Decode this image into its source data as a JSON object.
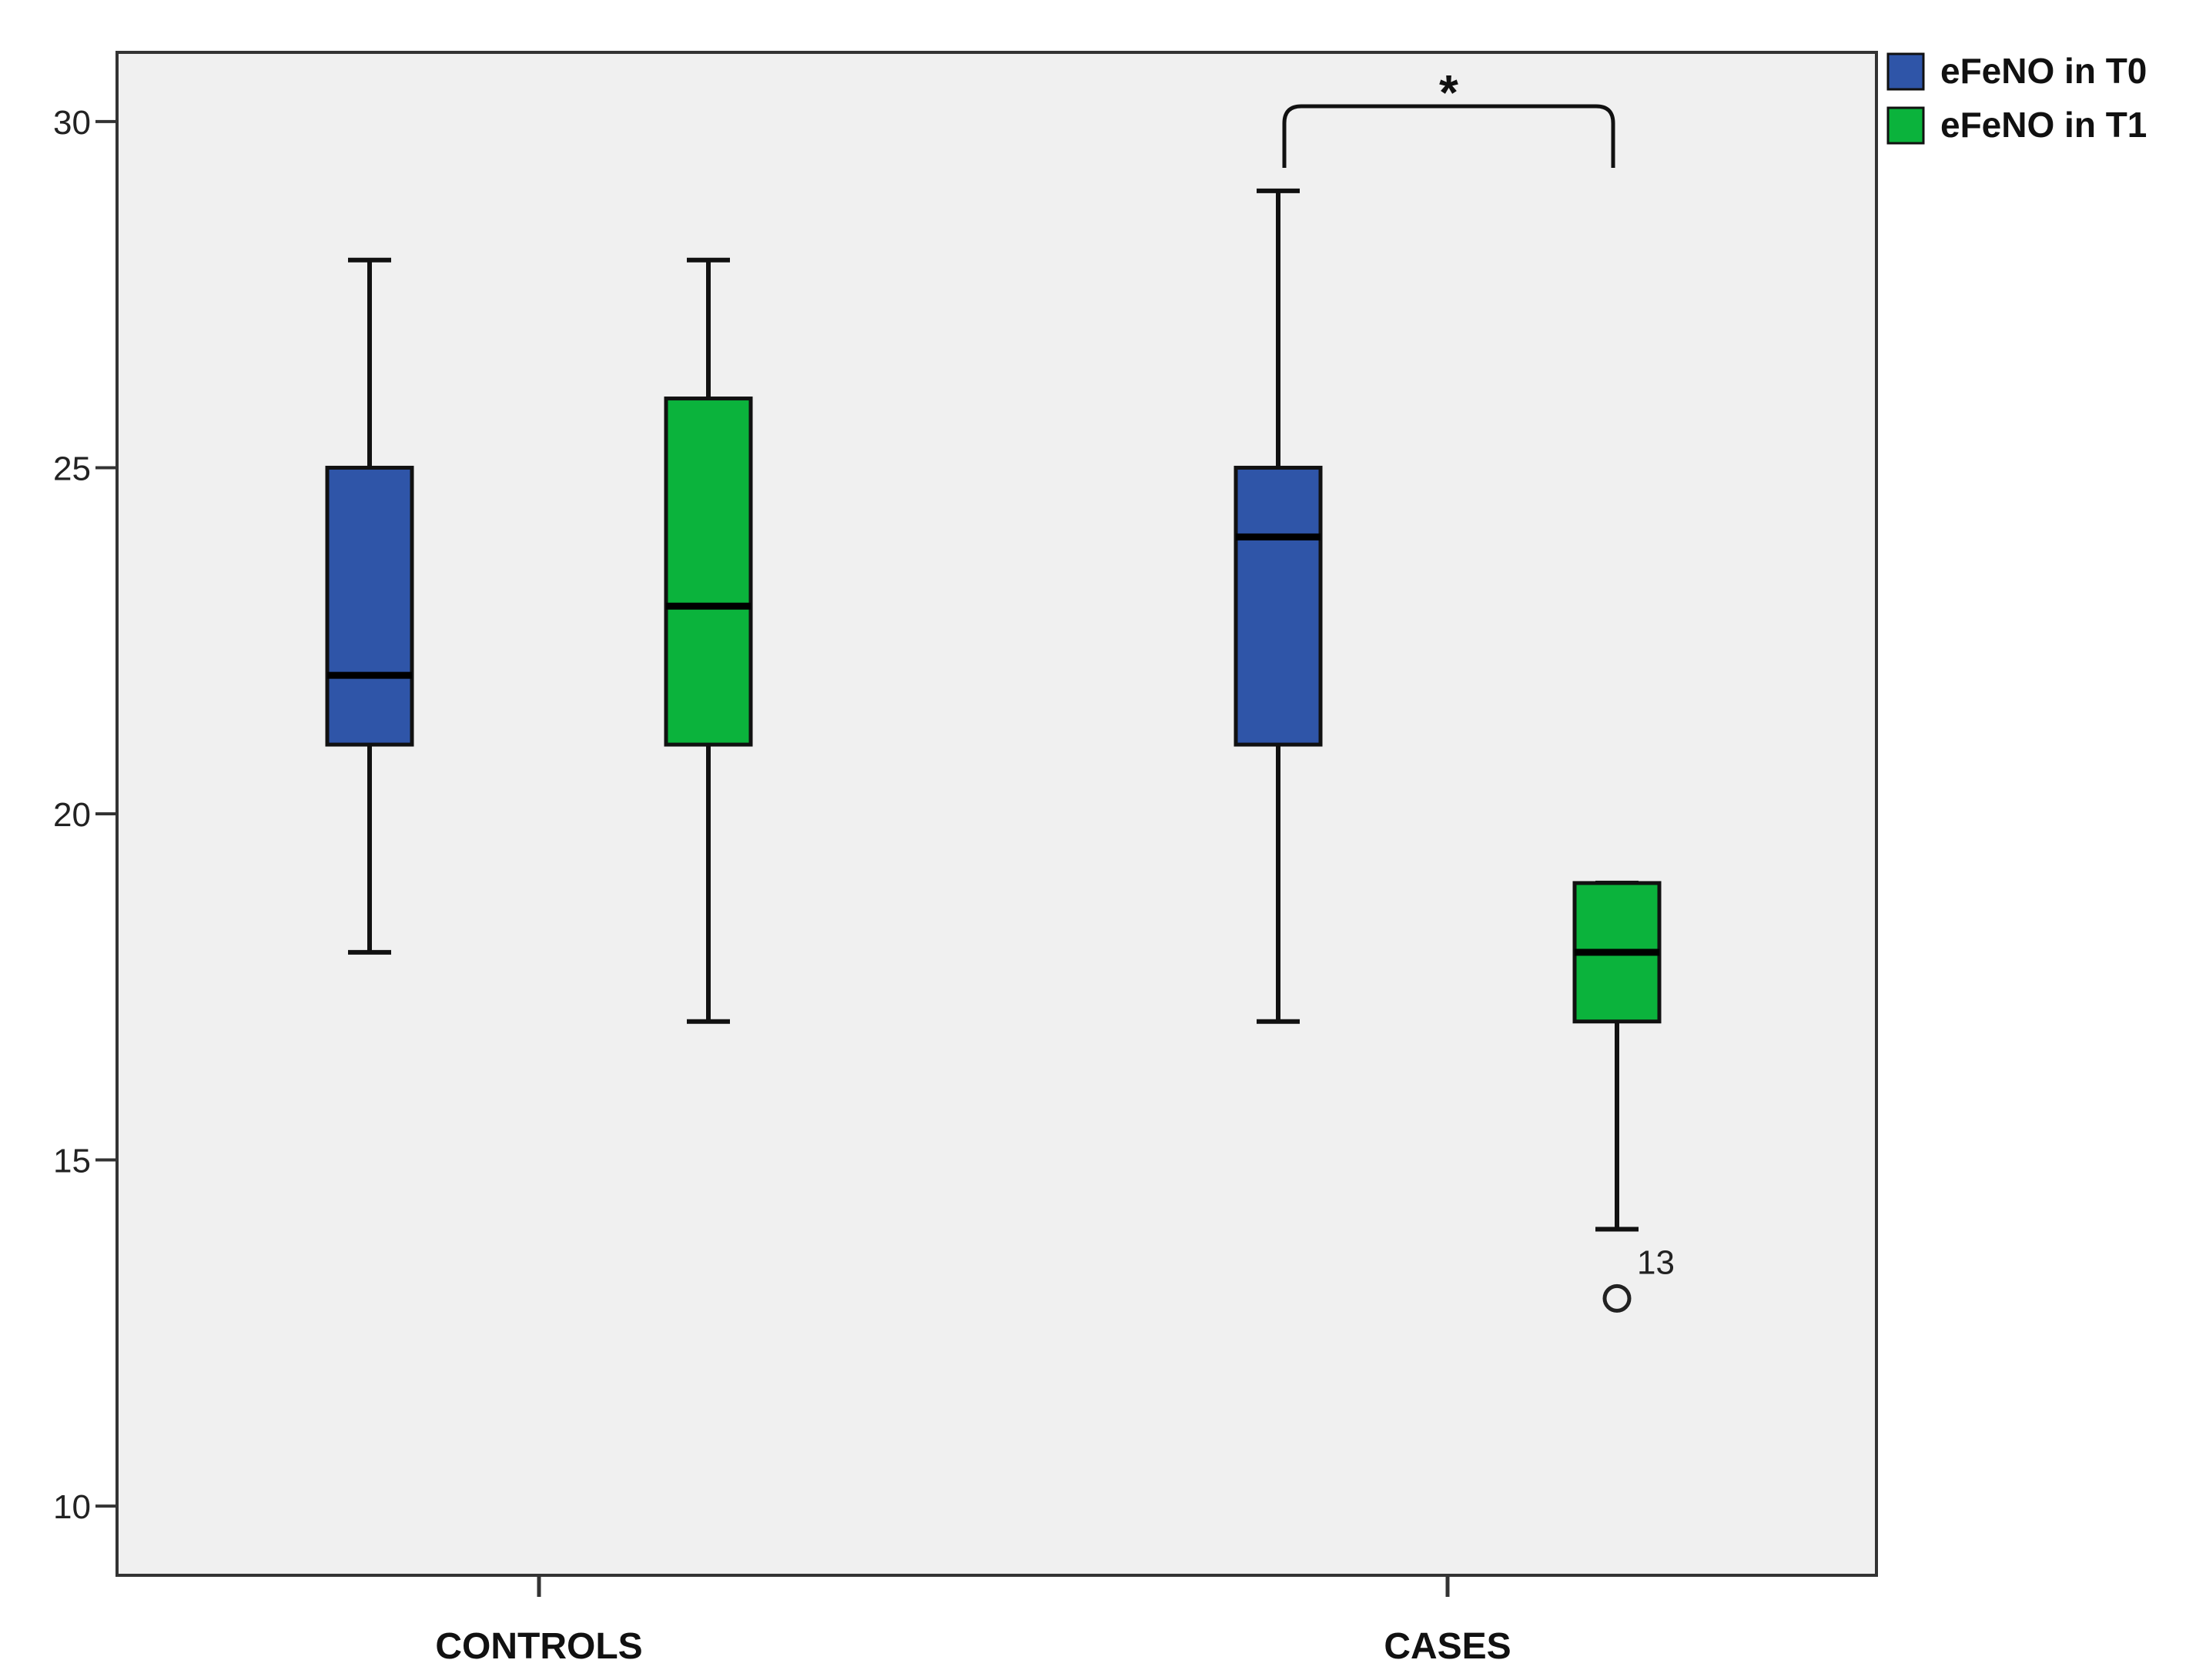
{
  "chart_data": {
    "type": "box",
    "categories": [
      "CONTROLS",
      "CASES"
    ],
    "ylim": [
      9,
      31
    ],
    "yticks": [
      10,
      15,
      20,
      25,
      30
    ],
    "grid": false,
    "legend_position": "top-right",
    "background_color": "#f0f0f0",
    "series": [
      {
        "name": "eFeNO in T0",
        "color": "#2f55a8",
        "boxes": [
          {
            "category": "CONTROLS",
            "min": 18,
            "q1": 21,
            "median": 22,
            "q3": 25,
            "max": 28
          },
          {
            "category": "CASES",
            "min": 17,
            "q1": 21,
            "median": 24,
            "q3": 25,
            "max": 29
          }
        ]
      },
      {
        "name": "eFeNO in T1",
        "color": "#0bb33c",
        "boxes": [
          {
            "category": "CONTROLS",
            "min": 17,
            "q1": 21,
            "median": 23,
            "q3": 26,
            "max": 28
          },
          {
            "category": "CASES",
            "min": 14,
            "q1": 17,
            "median": 18,
            "q3": 19,
            "max": 19,
            "outliers": [
              {
                "value": 13,
                "label": "13"
              }
            ]
          }
        ]
      }
    ],
    "annotations": [
      {
        "type": "significance-bracket",
        "category": "CASES",
        "label": "*"
      }
    ]
  }
}
